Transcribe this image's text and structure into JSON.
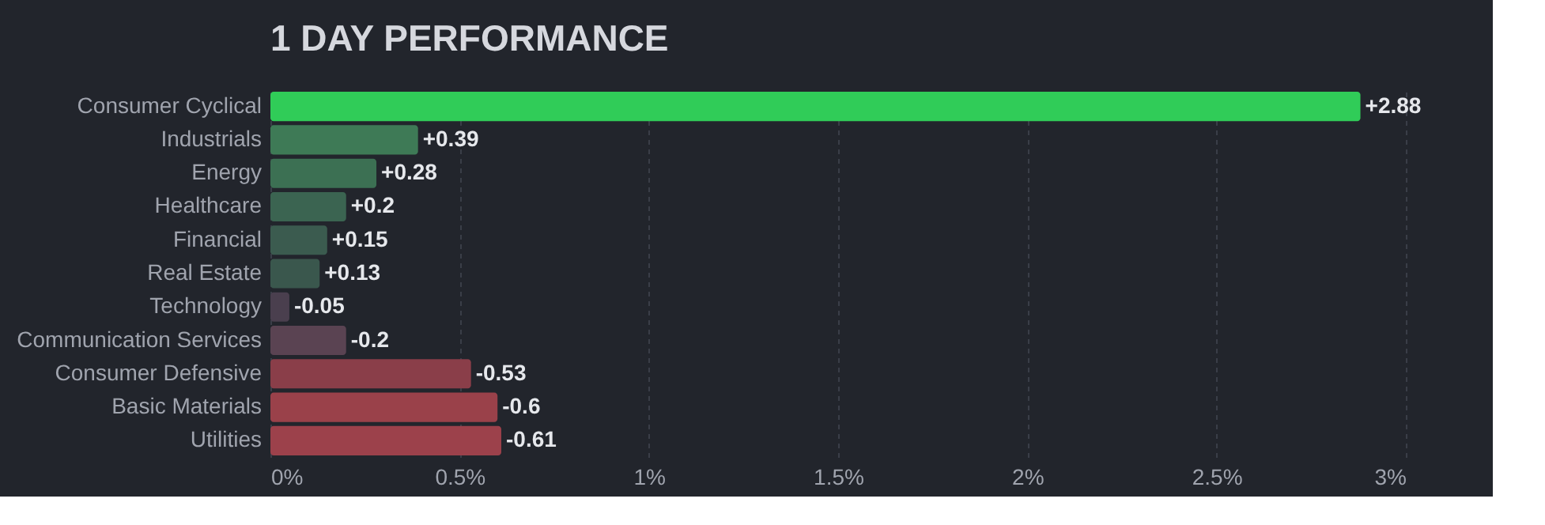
{
  "chart_data": {
    "type": "bar",
    "orientation": "horizontal",
    "title": "1 DAY PERFORMANCE",
    "categories": [
      "Consumer Cyclical",
      "Industrials",
      "Energy",
      "Healthcare",
      "Financial",
      "Real Estate",
      "Technology",
      "Communication Services",
      "Consumer Defensive",
      "Basic Materials",
      "Utilities"
    ],
    "values": [
      2.88,
      0.39,
      0.28,
      0.2,
      0.15,
      0.13,
      -0.05,
      -0.2,
      -0.53,
      -0.6,
      -0.61
    ],
    "base": [
      0,
      0,
      0,
      0,
      0,
      0,
      0.05,
      0.2,
      0.53,
      0.6,
      0.61
    ],
    "value_labels": [
      "+2.88",
      "+0.39",
      "+0.28",
      "+0.2",
      "+0.15",
      "+0.13",
      "-0.05",
      "-0.2",
      "-0.53",
      "-0.6",
      "-0.61"
    ],
    "colors": [
      "#30cc58",
      "#3e7a56",
      "#3c7053",
      "#3b6451",
      "#3b5b4f",
      "#3a574d",
      "#4a3f4e",
      "#5a4352",
      "#8a3e49",
      "#9a414a",
      "#9c414b"
    ],
    "xlim": [
      0,
      3
    ],
    "xticks": [
      {
        "value": 0,
        "label": "0%"
      },
      {
        "value": 0.5,
        "label": "0.5%"
      },
      {
        "value": 1,
        "label": "1%"
      },
      {
        "value": 1.5,
        "label": "1.5%"
      },
      {
        "value": 2,
        "label": "2%"
      },
      {
        "value": 2.5,
        "label": "2.5%"
      },
      {
        "value": 3,
        "label": "3%"
      }
    ],
    "grid": "x"
  }
}
